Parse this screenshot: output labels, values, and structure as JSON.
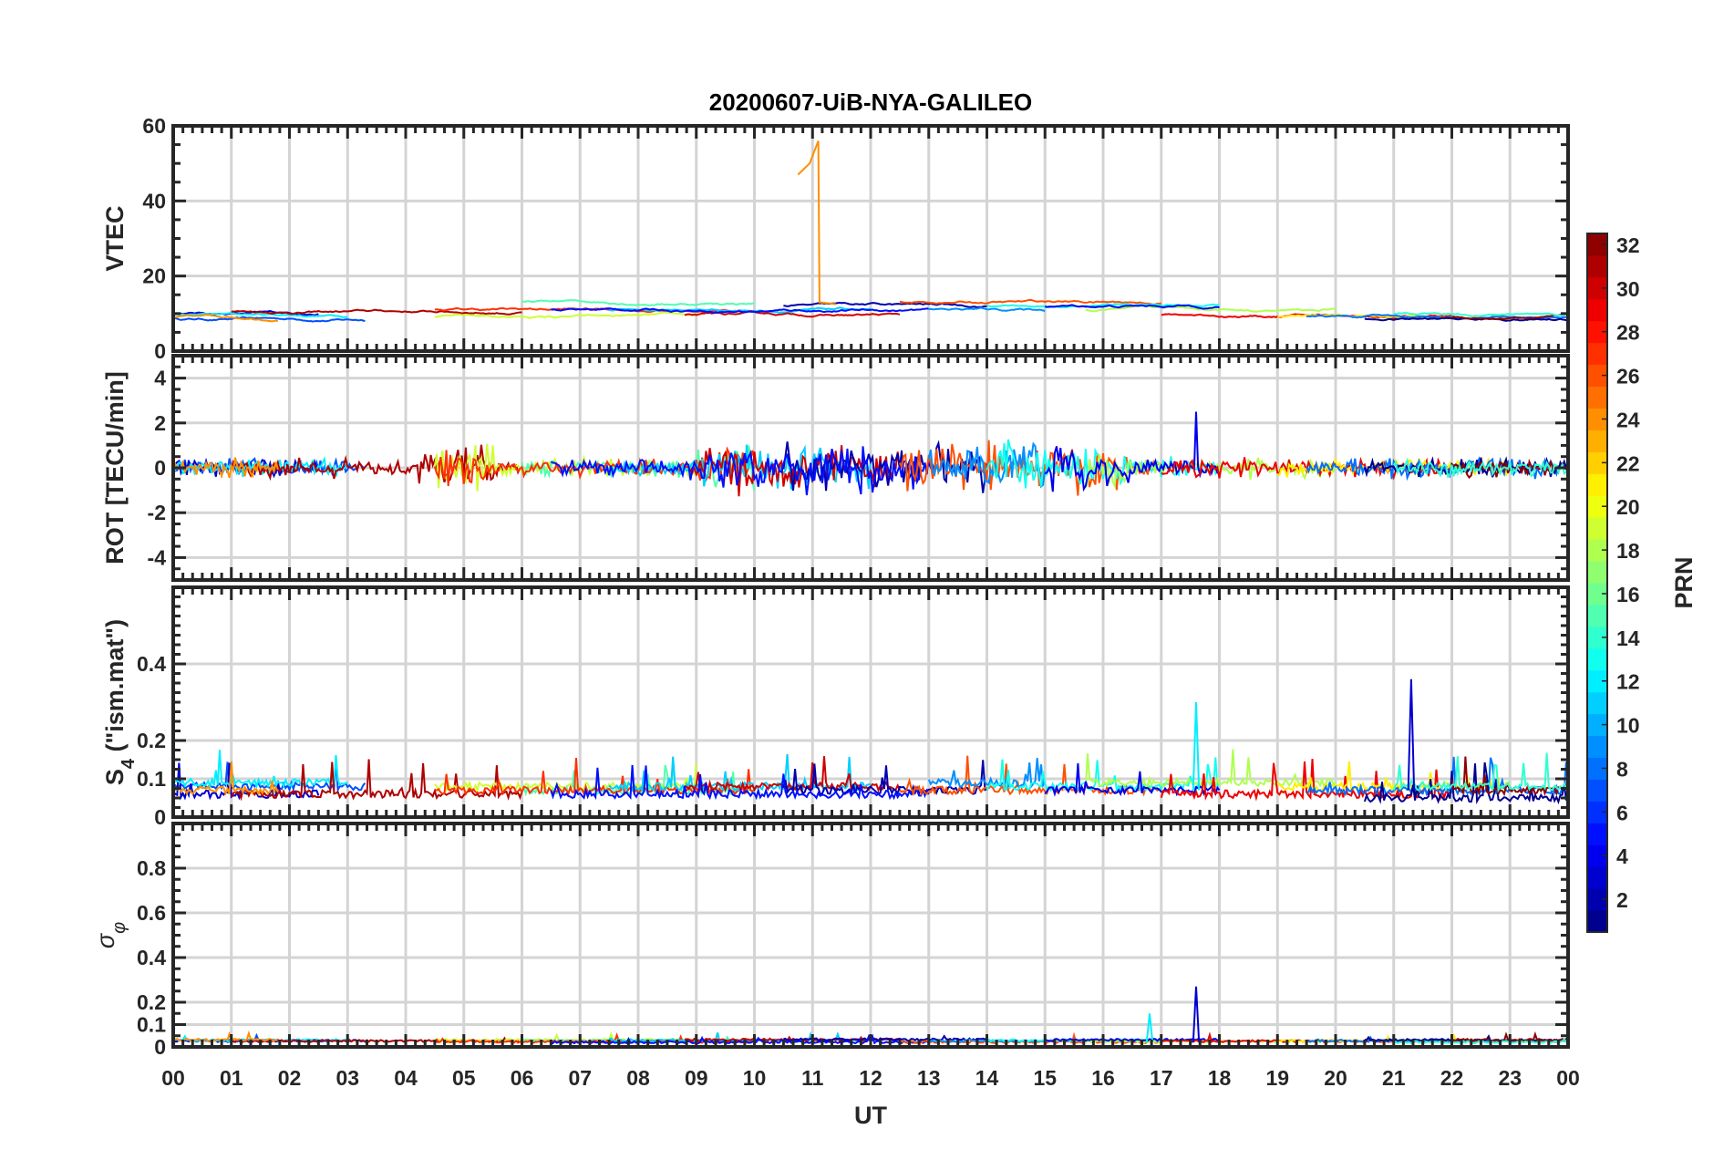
{
  "chart_data": {
    "type": "line",
    "title": "20200607-UiB-NYA-GALILEO",
    "xlabel": "UT",
    "xlim": [
      0,
      24
    ],
    "xtick_labels": [
      "00",
      "01",
      "02",
      "03",
      "04",
      "05",
      "06",
      "07",
      "08",
      "09",
      "10",
      "11",
      "12",
      "13",
      "14",
      "15",
      "16",
      "17",
      "18",
      "19",
      "20",
      "21",
      "22",
      "23",
      "00"
    ],
    "grid": true,
    "panels": [
      {
        "key": "vtec",
        "ylabel": "VTEC",
        "ylim": [
          0,
          60
        ],
        "yticks": [
          0,
          20,
          40,
          60
        ],
        "ytick_labels": [
          "0",
          "20",
          "40",
          "60"
        ]
      },
      {
        "key": "rot",
        "ylabel": "ROT [TECU/min]",
        "ylim": [
          -5,
          5
        ],
        "yticks": [
          -4,
          -2,
          0,
          2,
          4
        ],
        "ytick_labels": [
          "-4",
          "-2",
          "0",
          "2",
          "4"
        ]
      },
      {
        "key": "s4",
        "ylabel_main": "S",
        "ylabel_sub": "4",
        "ylabel_rest": " (\"ism.mat\")",
        "ylim": [
          0,
          0.6
        ],
        "yticks": [
          0,
          0.1,
          0.2,
          0.4
        ],
        "ytick_labels": [
          "0",
          "0.1",
          "0.2",
          "0.4"
        ]
      },
      {
        "key": "sigma",
        "ylabel_main": "σ",
        "ylabel_sub": "φ",
        "ylim": [
          0,
          1
        ],
        "yticks": [
          0,
          0.1,
          0.2,
          0.4,
          0.6,
          0.8
        ],
        "ytick_labels": [
          "0",
          "0.1",
          "0.2",
          "0.4",
          "0.6",
          "0.8"
        ]
      }
    ],
    "colorbar": {
      "label": "PRN",
      "range": [
        1,
        32
      ],
      "levels": 32,
      "colormap": "jet",
      "ticks": [
        2,
        4,
        6,
        8,
        10,
        12,
        14,
        16,
        18,
        20,
        22,
        24,
        26,
        28,
        30,
        32
      ],
      "tick_labels": [
        "2",
        "4",
        "6",
        "8",
        "10",
        "12",
        "14",
        "16",
        "18",
        "20",
        "22",
        "24",
        "26",
        "28",
        "30",
        "32"
      ]
    },
    "series": [
      {
        "prn": 7,
        "start": 0,
        "end": 3.3,
        "vtec": 8.5,
        "s4": 0.08
      },
      {
        "prn": 3,
        "start": 0,
        "end": 2.5,
        "vtec": 10,
        "s4": 0.06
      },
      {
        "prn": 12,
        "start": 0,
        "end": 3,
        "vtec": 9.5,
        "s4": 0.09
      },
      {
        "prn": 31,
        "start": 1,
        "end": 6,
        "vtec": 10.5,
        "s4": 0.06
      },
      {
        "prn": 24,
        "start": 0,
        "end": 1.8,
        "vtec": 9,
        "s4": 0.07
      },
      {
        "prn": 19,
        "start": 4.5,
        "end": 9,
        "vtec": 9,
        "s4": 0.08
      },
      {
        "prn": 15,
        "start": 6,
        "end": 10,
        "vtec": 13,
        "s4": 0.07
      },
      {
        "prn": 27,
        "start": 4.5,
        "end": 10,
        "vtec": 11,
        "s4": 0.07
      },
      {
        "prn": 11,
        "start": 7.5,
        "end": 12,
        "vtec": 11,
        "s4": 0.08
      },
      {
        "prn": 30,
        "start": 8.8,
        "end": 12.5,
        "vtec": 9.5,
        "s4": 0.08
      },
      {
        "prn": 2,
        "start": 10.5,
        "end": 14,
        "vtec": 12,
        "s4": 0.07
      },
      {
        "prn": 5,
        "start": 6.5,
        "end": 13,
        "vtec": 11,
        "s4": 0.06
      },
      {
        "prn": 26,
        "start": 12.5,
        "end": 17,
        "vtec": 13,
        "s4": 0.07
      },
      {
        "prn": 9,
        "start": 13,
        "end": 15,
        "vtec": 11,
        "s4": 0.09
      },
      {
        "prn": 13,
        "start": 14,
        "end": 18,
        "vtec": 12,
        "s4": 0.08
      },
      {
        "prn": 18,
        "start": 15.7,
        "end": 20,
        "vtec": 11,
        "s4": 0.09
      },
      {
        "prn": 4,
        "start": 15,
        "end": 18,
        "vtec": 12,
        "s4": 0.07
      },
      {
        "prn": 29,
        "start": 17,
        "end": 22,
        "vtec": 9.5,
        "s4": 0.06
      },
      {
        "prn": 21,
        "start": 19,
        "end": 23,
        "vtec": 9,
        "s4": 0.08
      },
      {
        "prn": 8,
        "start": 19.5,
        "end": 24,
        "vtec": 9,
        "s4": 0.07
      },
      {
        "prn": 1,
        "start": 20.5,
        "end": 24,
        "vtec": 8.5,
        "s4": 0.05
      },
      {
        "prn": 32,
        "start": 22,
        "end": 24,
        "vtec": 9,
        "s4": 0.07
      },
      {
        "prn": 14,
        "start": 21,
        "end": 24,
        "vtec": 10,
        "s4": 0.08
      }
    ],
    "peaks": [
      {
        "panel": "vtec",
        "prn": 24,
        "t": 11.1,
        "value": 56
      },
      {
        "panel": "rot",
        "prn": 4,
        "t": 17.6,
        "value": 2.5
      },
      {
        "panel": "s4",
        "prn": 12,
        "t": 17.6,
        "value": 0.3
      },
      {
        "panel": "s4",
        "prn": 3,
        "t": 21.3,
        "value": 0.36
      },
      {
        "panel": "sigma",
        "prn": 12,
        "t": 16.8,
        "value": 0.15
      },
      {
        "panel": "sigma",
        "prn": 3,
        "t": 17.6,
        "value": 0.27
      }
    ]
  }
}
